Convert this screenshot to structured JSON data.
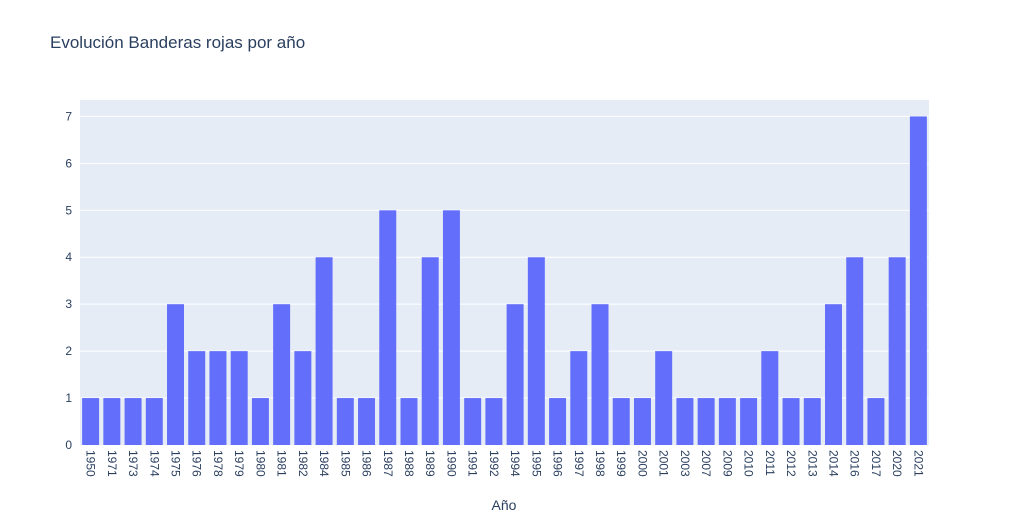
{
  "colors": {
    "plot_background": "#e5ecf6",
    "bar": "#636efa",
    "gridline": "#ffffff",
    "text": "#2a3f5f"
  },
  "chart_data": {
    "type": "bar",
    "title": "Evolución Banderas rojas por año",
    "xlabel": "Año",
    "ylabel": "",
    "ylim": [
      0,
      7.35
    ],
    "yticks": [
      0,
      1,
      2,
      3,
      4,
      5,
      6,
      7
    ],
    "grid": true,
    "categories": [
      "1950",
      "1971",
      "1973",
      "1974",
      "1975",
      "1976",
      "1978",
      "1979",
      "1980",
      "1981",
      "1982",
      "1984",
      "1985",
      "1986",
      "1987",
      "1988",
      "1989",
      "1990",
      "1991",
      "1992",
      "1994",
      "1995",
      "1996",
      "1997",
      "1998",
      "1999",
      "2000",
      "2001",
      "2003",
      "2007",
      "2009",
      "2010",
      "2011",
      "2012",
      "2013",
      "2014",
      "2016",
      "2017",
      "2020",
      "2021"
    ],
    "values": [
      1,
      1,
      1,
      1,
      3,
      2,
      2,
      2,
      1,
      3,
      2,
      4,
      1,
      1,
      5,
      1,
      4,
      5,
      1,
      1,
      3,
      4,
      1,
      2,
      3,
      1,
      1,
      2,
      1,
      1,
      1,
      1,
      2,
      1,
      1,
      3,
      4,
      1,
      4,
      7
    ]
  }
}
